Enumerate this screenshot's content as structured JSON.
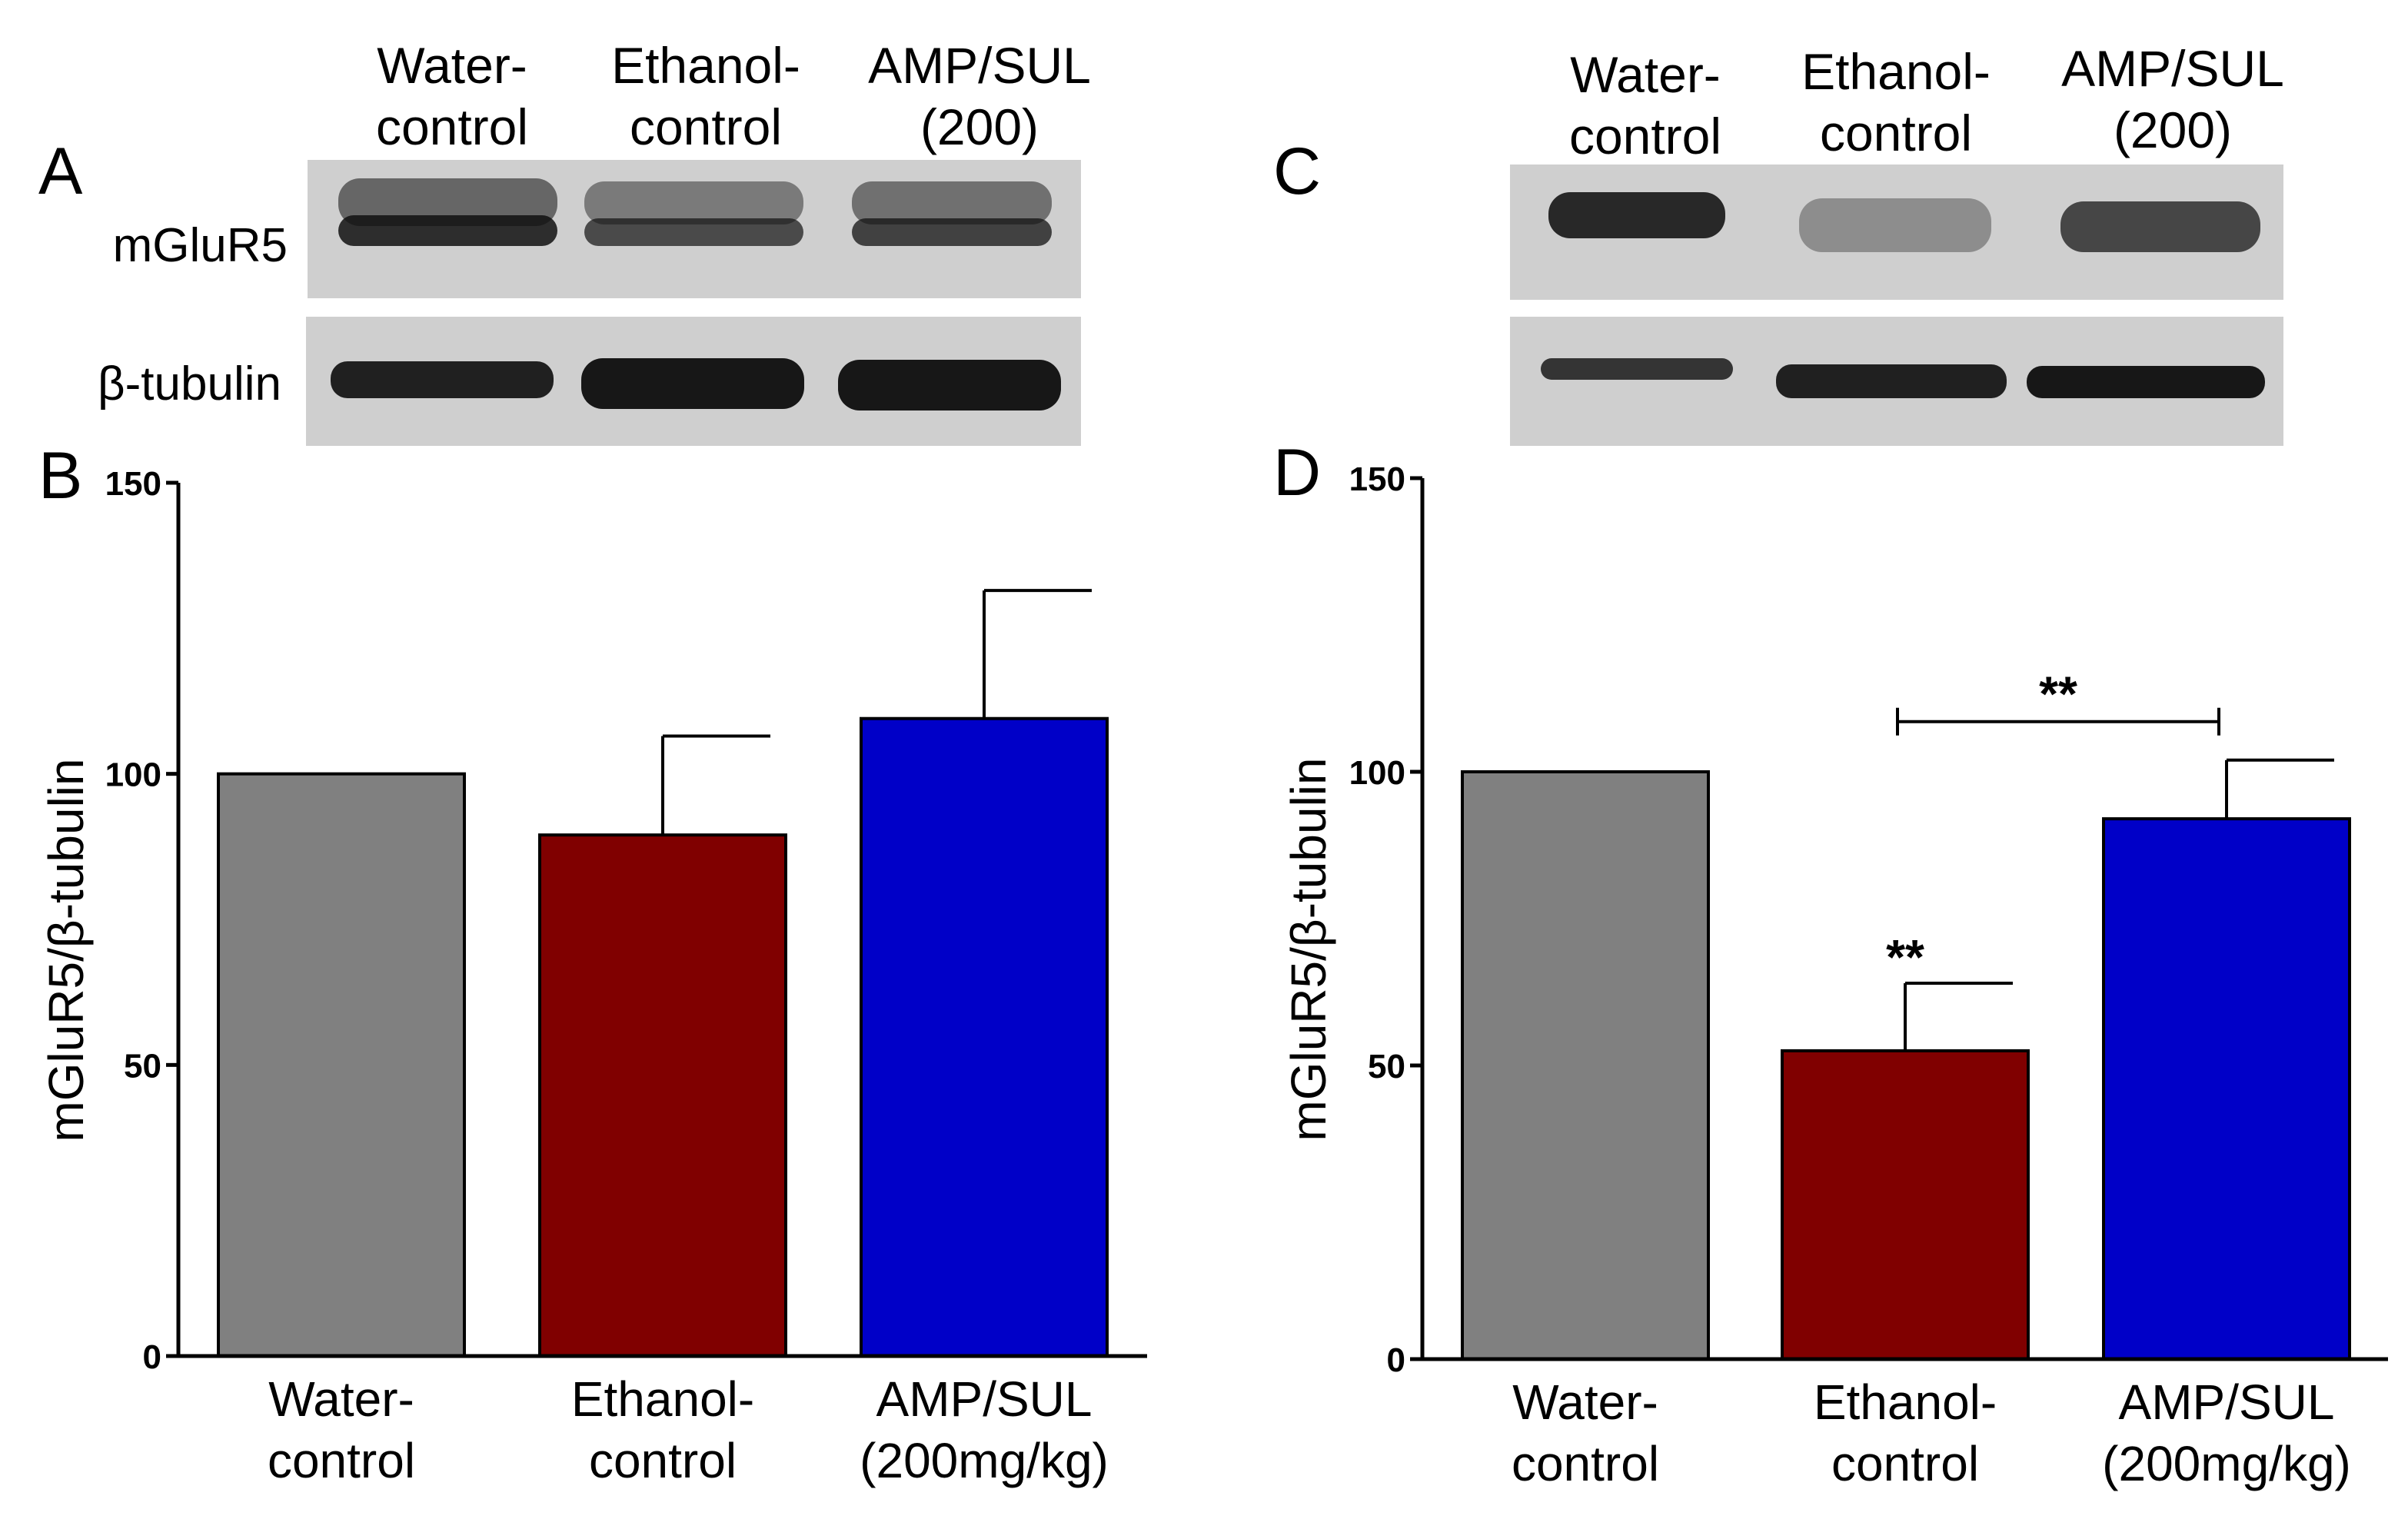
{
  "panels": {
    "A": {
      "letter": "A",
      "lane_headers": [
        [
          "Water-",
          "control"
        ],
        [
          "Ethanol-",
          "control"
        ],
        [
          "AMP/SUL",
          "(200)"
        ]
      ],
      "row_labels": [
        "mGluR5",
        "β-tubulin"
      ]
    },
    "C": {
      "letter": "C",
      "lane_headers": [
        [
          "Water-",
          "control"
        ],
        [
          "Ethanol-",
          "control"
        ],
        [
          "AMP/SUL",
          "(200)"
        ]
      ]
    }
  },
  "chart_data": [
    {
      "panel": "B",
      "type": "bar",
      "title": "",
      "ylabel": "mGluR5/β-tubulin",
      "xlabel": "",
      "ylim": [
        0,
        150
      ],
      "yticks": [
        0,
        50,
        100,
        150
      ],
      "categories": [
        [
          "Water-",
          "control"
        ],
        [
          "Ethanol-",
          "control"
        ],
        [
          "AMP/SUL",
          "(200mg/kg)"
        ]
      ],
      "values": [
        100,
        89.5,
        109.5
      ],
      "errors": [
        0,
        17,
        22
      ],
      "colors": [
        "#808080",
        "#800000",
        "#0000c8"
      ],
      "annotations": []
    },
    {
      "panel": "D",
      "type": "bar",
      "title": "",
      "ylabel": "mGluR5/β-tubulin",
      "xlabel": "",
      "ylim": [
        0,
        150
      ],
      "yticks": [
        0,
        50,
        100,
        150
      ],
      "categories": [
        [
          "Water-",
          "control"
        ],
        [
          "Ethanol-",
          "control"
        ],
        [
          "AMP/SUL",
          "(200mg/kg)"
        ]
      ],
      "values": [
        100,
        52.5,
        92
      ],
      "errors": [
        0,
        11.5,
        10
      ],
      "colors": [
        "#808080",
        "#800000",
        "#0000c8"
      ],
      "annotations": [
        {
          "text": "**",
          "over_bar": 1
        },
        {
          "text": "**",
          "bracket_from": 1,
          "bracket_to": 2
        }
      ]
    }
  ]
}
